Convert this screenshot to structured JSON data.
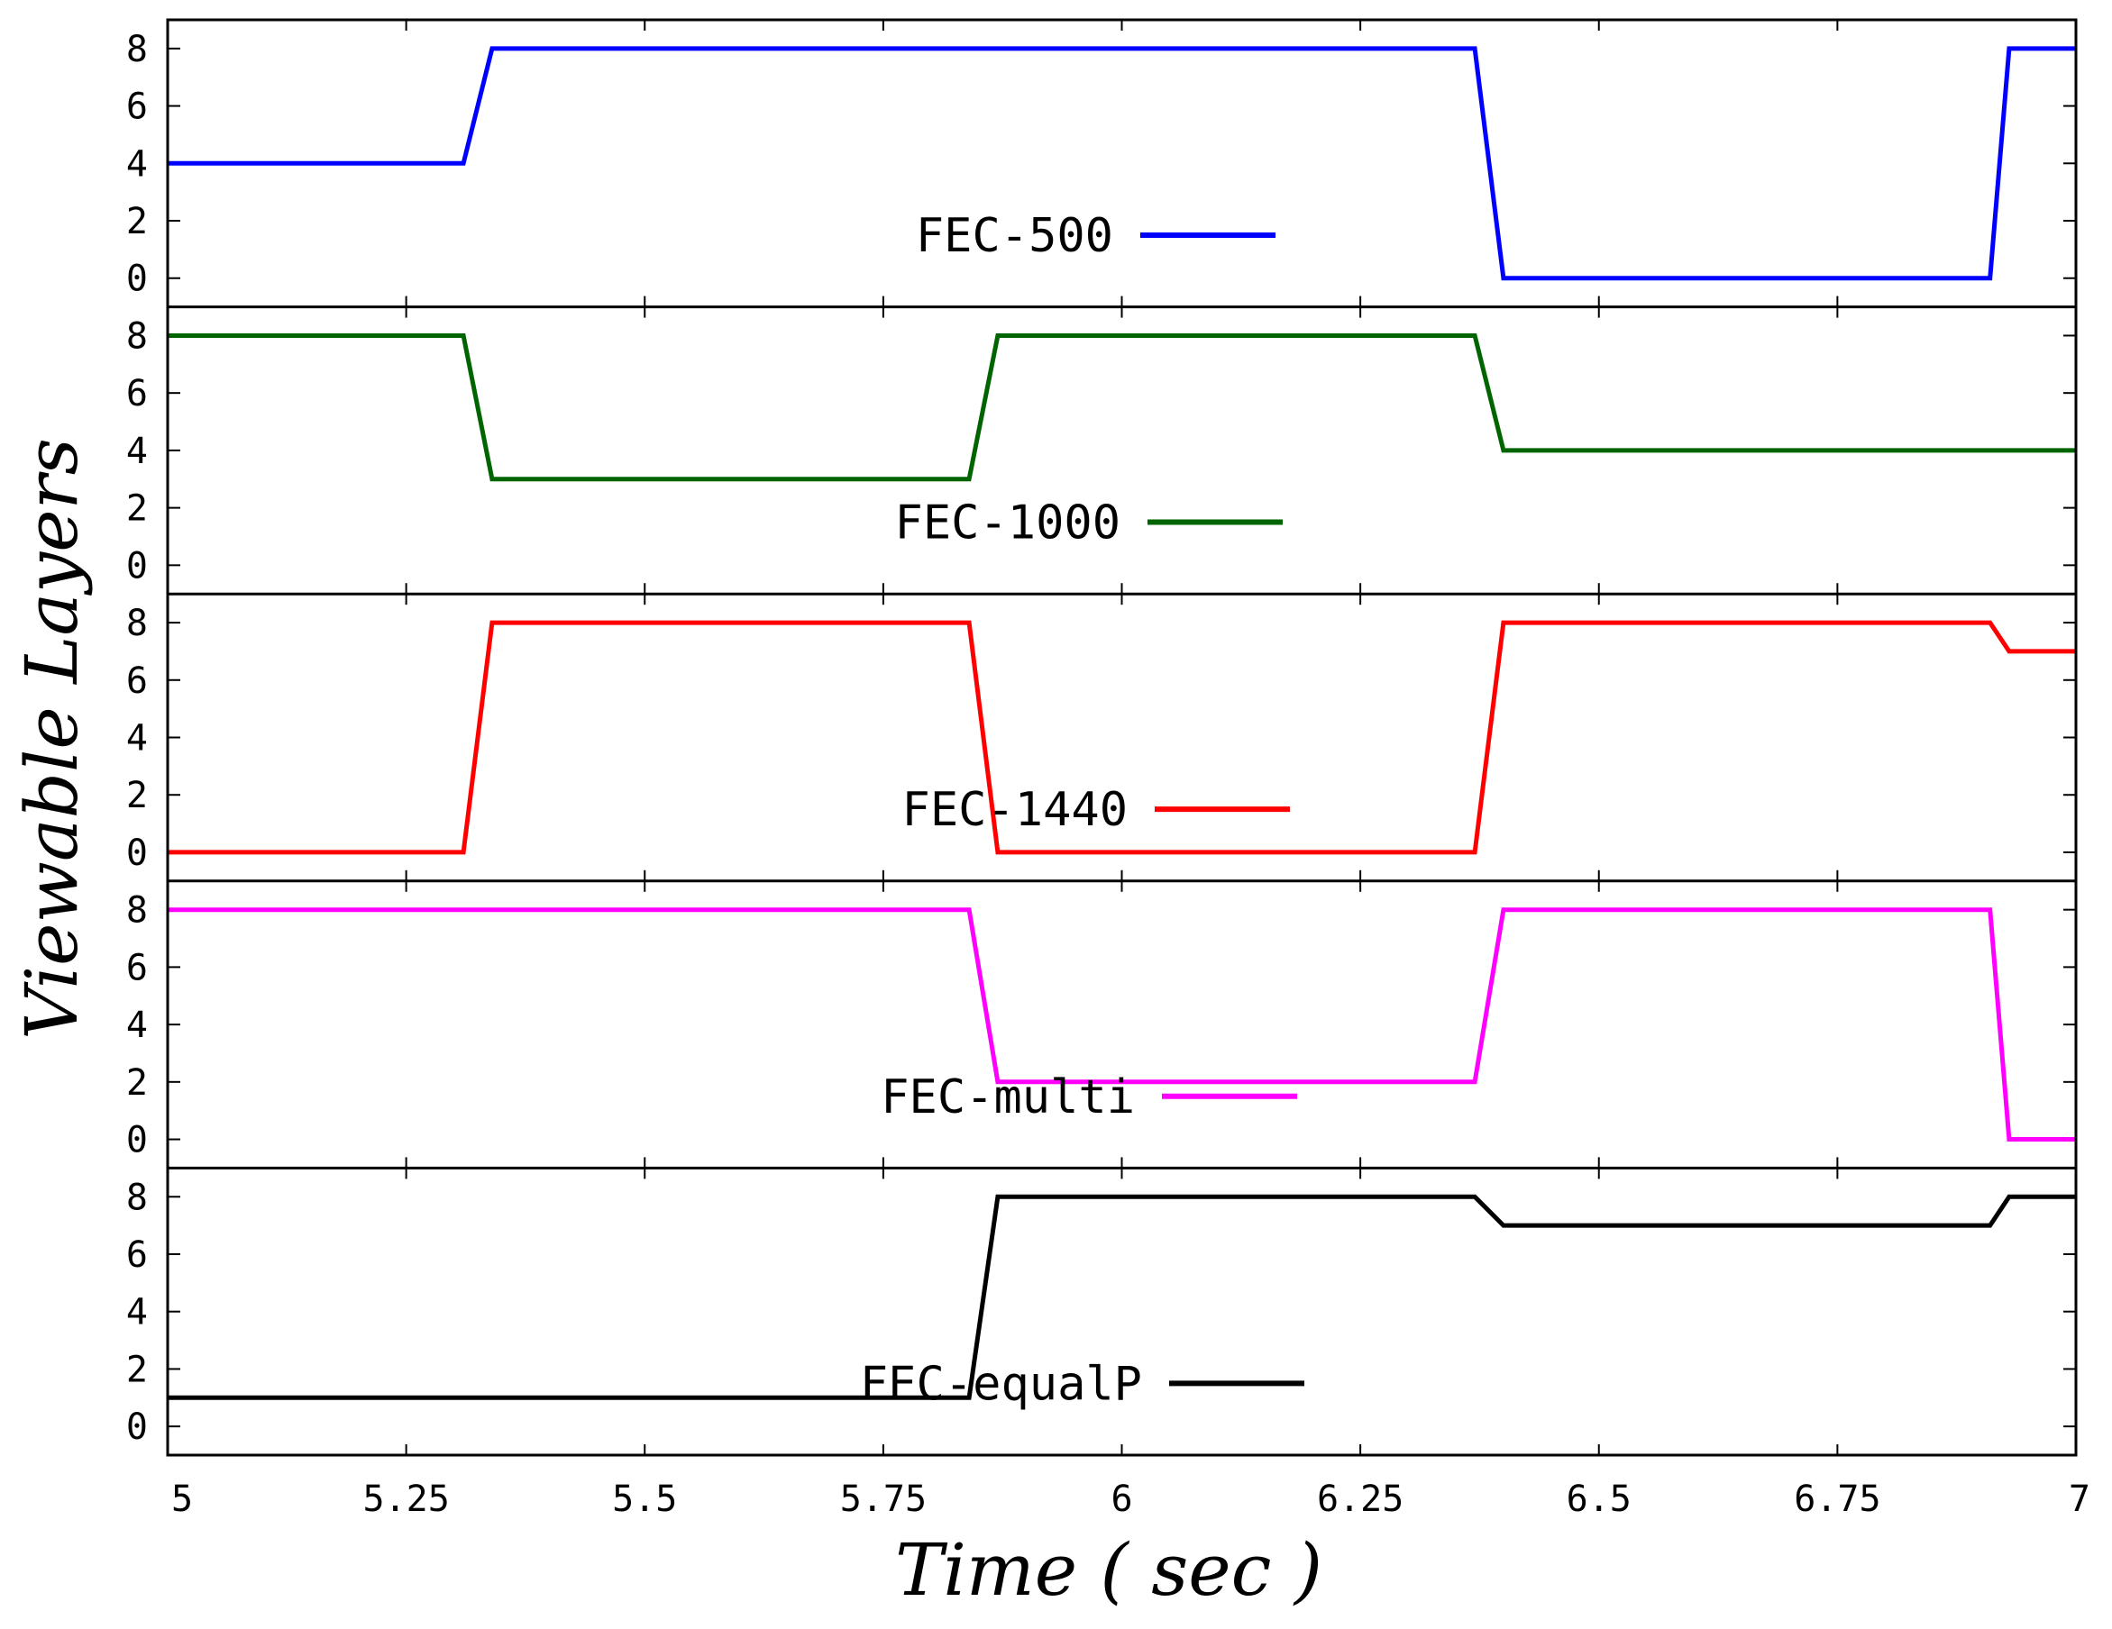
{
  "chart_data": {
    "type": "line",
    "layout": "stacked-panels",
    "xlabel": "Time ( sec )",
    "ylabel": "Viewable Layers",
    "xlim": [
      5,
      7
    ],
    "ylim": [
      -1,
      9
    ],
    "x_ticks": [
      5,
      5.25,
      5.5,
      5.75,
      6,
      6.25,
      6.5,
      6.75,
      7
    ],
    "x_tick_labels": [
      "5",
      "5.25",
      "5.5",
      "5.75",
      "6",
      "6.25",
      "6.5",
      "6.75",
      "7"
    ],
    "y_ticks": [
      0,
      2,
      4,
      6,
      8
    ],
    "y_tick_labels": [
      "0",
      "2",
      "4",
      "6",
      "8"
    ],
    "grid": false,
    "series": [
      {
        "name": "FEC-500",
        "color": "#0000ff",
        "x": [
          5,
          5.31,
          5.34,
          6.37,
          6.4,
          6.91,
          6.93,
          7
        ],
        "y": [
          4,
          4,
          8,
          8,
          0,
          0,
          8,
          8
        ]
      },
      {
        "name": "FEC-1000",
        "color": "#006400",
        "x": [
          5,
          5.31,
          5.34,
          5.84,
          5.87,
          6.37,
          6.4,
          7
        ],
        "y": [
          8,
          8,
          3,
          3,
          8,
          8,
          4,
          4
        ]
      },
      {
        "name": "FEC-1440",
        "color": "#ff0000",
        "x": [
          5,
          5.31,
          5.34,
          5.84,
          5.87,
          6.37,
          6.4,
          6.91,
          6.93,
          7
        ],
        "y": [
          0,
          0,
          8,
          8,
          0,
          0,
          8,
          8,
          7,
          7
        ]
      },
      {
        "name": "FEC-multi",
        "color": "#ff00ff",
        "x": [
          5,
          5.84,
          5.87,
          6.37,
          6.4,
          6.91,
          6.93,
          7
        ],
        "y": [
          8,
          8,
          2,
          2,
          8,
          8,
          0,
          0
        ]
      },
      {
        "name": "FEC-equalP",
        "color": "#000000",
        "x": [
          5,
          5.84,
          5.87,
          6.37,
          6.4,
          6.91,
          6.93,
          7
        ],
        "y": [
          1,
          1,
          8,
          8,
          7,
          7,
          8,
          8
        ]
      }
    ]
  }
}
